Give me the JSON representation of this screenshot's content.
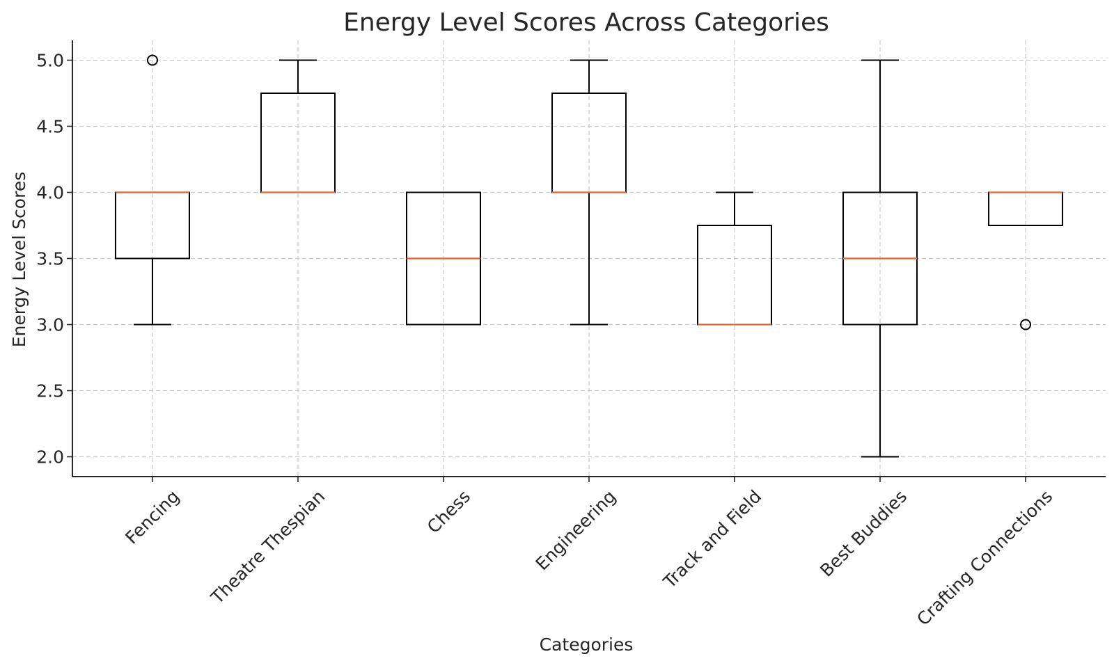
{
  "chart_data": {
    "type": "box",
    "title": "Energy Level Scores Across Categories",
    "xlabel": "Categories",
    "ylabel": "Energy Level Scores",
    "ylim": [
      1.85,
      5.15
    ],
    "yticks": [
      "2.0",
      "2.5",
      "3.0",
      "3.5",
      "4.0",
      "4.5",
      "5.0"
    ],
    "grid": true,
    "median_color": "#e8622c",
    "box_color": "#000000",
    "categories": [
      "Fencing",
      "Theatre Thespian",
      "Chess",
      "Engineering",
      "Track and Field",
      "Best Buddies",
      "Crafting Connections"
    ],
    "boxes": [
      {
        "category": "Fencing",
        "whisker_low": 3.0,
        "q1": 3.5,
        "median": 4.0,
        "q3": 4.0,
        "whisker_high": 4.0,
        "outliers": [
          5.0
        ]
      },
      {
        "category": "Theatre Thespian",
        "whisker_low": 4.0,
        "q1": 4.0,
        "median": 4.0,
        "q3": 4.75,
        "whisker_high": 5.0,
        "outliers": []
      },
      {
        "category": "Chess",
        "whisker_low": 3.0,
        "q1": 3.0,
        "median": 3.5,
        "q3": 4.0,
        "whisker_high": 4.0,
        "outliers": []
      },
      {
        "category": "Engineering",
        "whisker_low": 3.0,
        "q1": 4.0,
        "median": 4.0,
        "q3": 4.75,
        "whisker_high": 5.0,
        "outliers": []
      },
      {
        "category": "Track and Field",
        "whisker_low": 3.0,
        "q1": 3.0,
        "median": 3.0,
        "q3": 3.75,
        "whisker_high": 4.0,
        "outliers": []
      },
      {
        "category": "Best Buddies",
        "whisker_low": 2.0,
        "q1": 3.0,
        "median": 3.5,
        "q3": 4.0,
        "whisker_high": 5.0,
        "outliers": []
      },
      {
        "category": "Crafting Connections",
        "whisker_low": 3.75,
        "q1": 3.75,
        "median": 4.0,
        "q3": 4.0,
        "whisker_high": 4.0,
        "outliers": [
          3.0
        ]
      }
    ]
  }
}
